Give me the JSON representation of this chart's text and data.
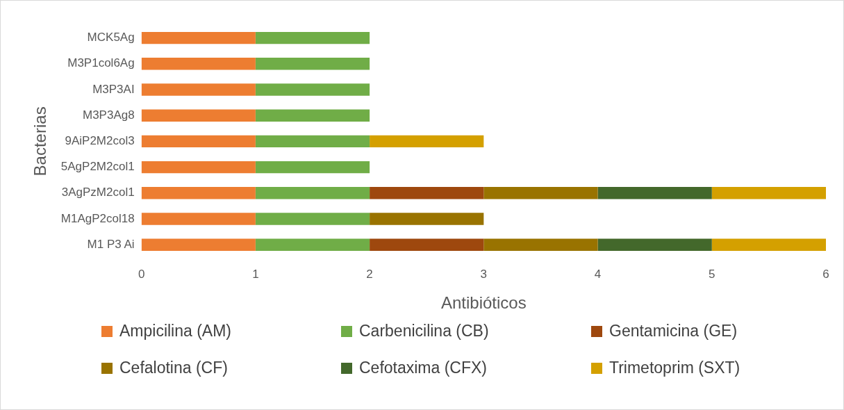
{
  "chart_data": {
    "type": "bar",
    "orientation": "horizontal",
    "stacked": true,
    "xlabel": "Antibióticos",
    "ylabel": "Bacterias",
    "categories": [
      "MCK5Ag",
      "M3P1col6Ag",
      "M3P3AI",
      "M3P3Ag8",
      "9AiP2M2col3",
      "5AgP2M2col1",
      "3AgPzM2col1",
      "M1AgP2col18",
      "M1 P3 Ai"
    ],
    "series": [
      {
        "name": "Ampicilina (AM)",
        "color": "#ed7d31",
        "values": [
          1,
          1,
          1,
          1,
          1,
          1,
          1,
          1,
          1
        ]
      },
      {
        "name": "Carbenicilina (CB)",
        "color": "#70ad47",
        "values": [
          1,
          1,
          1,
          1,
          1,
          1,
          1,
          1,
          1
        ]
      },
      {
        "name": "Gentamicina (GE)",
        "color": "#9e480e",
        "values": [
          null,
          null,
          null,
          null,
          null,
          null,
          1,
          null,
          1
        ]
      },
      {
        "name": "Cefalotina (CF)",
        "color": "#997300",
        "values": [
          null,
          null,
          null,
          null,
          null,
          null,
          1,
          1,
          1
        ]
      },
      {
        "name": "Cefotaxima (CFX)",
        "color": "#43682b",
        "values": [
          null,
          null,
          null,
          null,
          null,
          null,
          1,
          null,
          1
        ]
      },
      {
        "name": "Trimetoprim (SXT)",
        "color": "#d4a000",
        "values": [
          null,
          null,
          null,
          null,
          1,
          null,
          1,
          null,
          1
        ]
      }
    ],
    "xlim": [
      0,
      6
    ],
    "xticks": [
      0,
      1,
      2,
      3,
      4,
      5,
      6
    ],
    "grid": false,
    "legend": "bottom"
  }
}
